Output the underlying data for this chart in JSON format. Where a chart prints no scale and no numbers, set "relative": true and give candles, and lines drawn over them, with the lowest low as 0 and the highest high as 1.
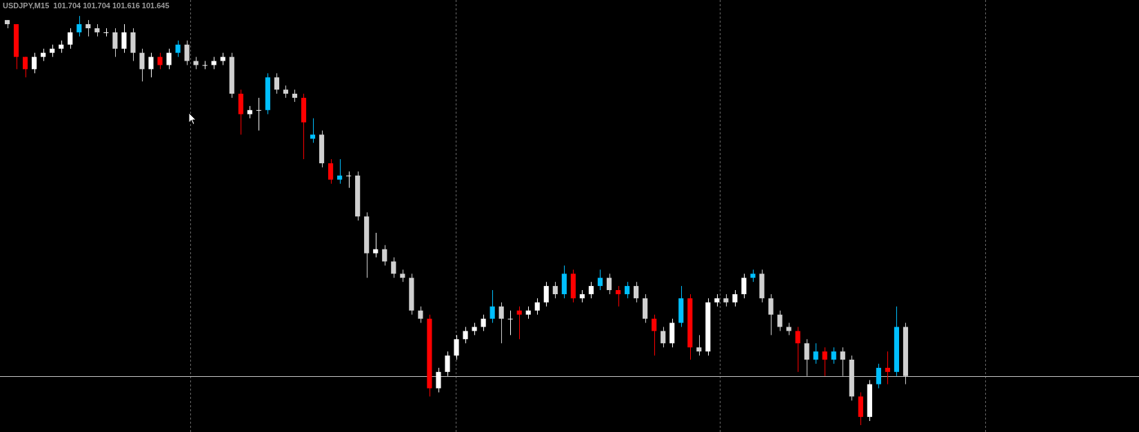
{
  "chart_data": {
    "type": "candlestick",
    "title": "USDJPY,M15  101.704 101.704 101.616 101.645",
    "relative": true,
    "legend": false,
    "tick_labels": false,
    "categories": [
      null,
      null,
      null,
      null,
      null,
      null,
      null,
      null,
      null,
      null,
      null,
      null,
      null,
      null,
      null,
      null,
      null,
      null,
      null,
      null,
      null,
      null,
      null,
      null,
      null,
      null,
      null,
      null,
      null,
      null,
      null,
      null,
      null,
      null,
      null,
      null,
      null,
      null,
      null,
      null,
      null,
      null,
      null,
      null,
      null,
      null,
      null,
      null,
      null,
      null,
      null,
      null,
      null,
      null,
      null,
      null,
      null,
      null,
      null,
      null,
      null,
      null,
      null,
      null,
      null,
      null,
      null,
      null,
      null,
      null,
      null,
      null,
      null,
      null,
      null,
      null,
      null,
      null,
      null,
      null,
      null,
      null,
      null,
      null,
      null,
      null,
      null,
      null,
      null,
      null,
      null,
      null,
      null,
      null,
      null,
      null,
      null,
      null,
      null,
      null,
      null
    ],
    "ohlc": [
      [
        0.99,
        0.99,
        0.97,
        0.98
      ],
      [
        0.98,
        0.98,
        0.87,
        0.9
      ],
      [
        0.9,
        0.9,
        0.85,
        0.87
      ],
      [
        0.87,
        0.91,
        0.86,
        0.9
      ],
      [
        0.9,
        0.92,
        0.89,
        0.91
      ],
      [
        0.91,
        0.93,
        0.9,
        0.92
      ],
      [
        0.92,
        0.94,
        0.91,
        0.93
      ],
      [
        0.93,
        0.97,
        0.92,
        0.96
      ],
      [
        0.96,
        1,
        0.95,
        0.98
      ],
      [
        0.98,
        0.99,
        0.95,
        0.97
      ],
      [
        0.97,
        0.98,
        0.95,
        0.96
      ],
      [
        0.96,
        0.97,
        0.95,
        0.96
      ],
      [
        0.96,
        0.97,
        0.9,
        0.92
      ],
      [
        0.92,
        0.98,
        0.91,
        0.96
      ],
      [
        0.96,
        0.97,
        0.89,
        0.91
      ],
      [
        0.91,
        0.92,
        0.84,
        0.87
      ],
      [
        0.87,
        0.91,
        0.85,
        0.9
      ],
      [
        0.9,
        0.91,
        0.87,
        0.88
      ],
      [
        0.88,
        0.92,
        0.87,
        0.91
      ],
      [
        0.91,
        0.94,
        0.9,
        0.93
      ],
      [
        0.93,
        0.94,
        0.88,
        0.89
      ],
      [
        0.89,
        0.9,
        0.87,
        0.88
      ],
      [
        0.88,
        0.89,
        0.87,
        0.88
      ],
      [
        0.88,
        0.9,
        0.87,
        0.89
      ],
      [
        0.89,
        0.91,
        0.88,
        0.9
      ],
      [
        0.9,
        0.91,
        0.8,
        0.81
      ],
      [
        0.81,
        0.82,
        0.71,
        0.76
      ],
      [
        0.76,
        0.78,
        0.75,
        0.77
      ],
      [
        0.77,
        0.8,
        0.72,
        0.77
      ],
      [
        0.77,
        0.86,
        0.76,
        0.85
      ],
      [
        0.85,
        0.86,
        0.81,
        0.82
      ],
      [
        0.82,
        0.83,
        0.8,
        0.81
      ],
      [
        0.81,
        0.82,
        0.79,
        0.8
      ],
      [
        0.8,
        0.81,
        0.65,
        0.74
      ],
      [
        0.7,
        0.75,
        0.69,
        0.71
      ],
      [
        0.71,
        0.72,
        0.63,
        0.64
      ],
      [
        0.64,
        0.65,
        0.59,
        0.6
      ],
      [
        0.6,
        0.65,
        0.59,
        0.61
      ],
      [
        0.61,
        0.62,
        0.58,
        0.61
      ],
      [
        0.61,
        0.62,
        0.5,
        0.51
      ],
      [
        0.51,
        0.52,
        0.36,
        0.42
      ],
      [
        0.42,
        0.47,
        0.41,
        0.43
      ],
      [
        0.43,
        0.44,
        0.39,
        0.4
      ],
      [
        0.4,
        0.41,
        0.36,
        0.37
      ],
      [
        0.37,
        0.38,
        0.35,
        0.36
      ],
      [
        0.36,
        0.37,
        0.27,
        0.28
      ],
      [
        0.28,
        0.29,
        0.25,
        0.26
      ],
      [
        0.26,
        0.27,
        0.07,
        0.09
      ],
      [
        0.09,
        0.14,
        0.08,
        0.13
      ],
      [
        0.13,
        0.18,
        0.12,
        0.17
      ],
      [
        0.17,
        0.22,
        0.16,
        0.21
      ],
      [
        0.21,
        0.24,
        0.2,
        0.23
      ],
      [
        0.23,
        0.25,
        0.22,
        0.24
      ],
      [
        0.24,
        0.27,
        0.23,
        0.26
      ],
      [
        0.26,
        0.33,
        0.25,
        0.29
      ],
      [
        0.29,
        0.3,
        0.2,
        0.26
      ],
      [
        0.26,
        0.28,
        0.22,
        0.26
      ],
      [
        0.28,
        0.29,
        0.21,
        0.27
      ],
      [
        0.27,
        0.29,
        0.26,
        0.28
      ],
      [
        0.28,
        0.31,
        0.27,
        0.3
      ],
      [
        0.3,
        0.35,
        0.29,
        0.34
      ],
      [
        0.34,
        0.35,
        0.31,
        0.32
      ],
      [
        0.32,
        0.39,
        0.31,
        0.37
      ],
      [
        0.37,
        0.38,
        0.3,
        0.31
      ],
      [
        0.31,
        0.33,
        0.3,
        0.32
      ],
      [
        0.32,
        0.35,
        0.31,
        0.34
      ],
      [
        0.34,
        0.38,
        0.33,
        0.36
      ],
      [
        0.36,
        0.37,
        0.32,
        0.33
      ],
      [
        0.33,
        0.34,
        0.29,
        0.32
      ],
      [
        0.32,
        0.35,
        0.31,
        0.34
      ],
      [
        0.34,
        0.35,
        0.3,
        0.31
      ],
      [
        0.31,
        0.32,
        0.25,
        0.26
      ],
      [
        0.26,
        0.27,
        0.17,
        0.23
      ],
      [
        0.23,
        0.24,
        0.19,
        0.2
      ],
      [
        0.2,
        0.26,
        0.19,
        0.25
      ],
      [
        0.25,
        0.34,
        0.24,
        0.31
      ],
      [
        0.31,
        0.32,
        0.16,
        0.19
      ],
      [
        0.19,
        0.22,
        0.17,
        0.18
      ],
      [
        0.18,
        0.31,
        0.17,
        0.3
      ],
      [
        0.3,
        0.32,
        0.29,
        0.31
      ],
      [
        0.31,
        0.32,
        0.29,
        0.3
      ],
      [
        0.3,
        0.33,
        0.29,
        0.32
      ],
      [
        0.32,
        0.37,
        0.31,
        0.36
      ],
      [
        0.36,
        0.38,
        0.35,
        0.37
      ],
      [
        0.37,
        0.38,
        0.3,
        0.31
      ],
      [
        0.31,
        0.32,
        0.22,
        0.27
      ],
      [
        0.27,
        0.28,
        0.23,
        0.24
      ],
      [
        0.24,
        0.25,
        0.22,
        0.23
      ],
      [
        0.23,
        0.24,
        0.13,
        0.2
      ],
      [
        0.2,
        0.21,
        0.12,
        0.16
      ],
      [
        0.16,
        0.2,
        0.15,
        0.18
      ],
      [
        0.18,
        0.19,
        0.12,
        0.16
      ],
      [
        0.16,
        0.19,
        0.15,
        0.18
      ],
      [
        0.18,
        0.19,
        0.12,
        0.16
      ],
      [
        0.16,
        0.17,
        0.06,
        0.07
      ],
      [
        0.07,
        0.08,
        0,
        0.02
      ],
      [
        0.02,
        0.11,
        0.01,
        0.1
      ],
      [
        0.1,
        0.15,
        0.09,
        0.14
      ],
      [
        0.14,
        0.18,
        0.1,
        0.13
      ],
      [
        0.13,
        0.29,
        0.12,
        0.24
      ],
      [
        0.24,
        0.25,
        0.1,
        0.12
      ]
    ],
    "colors": [
      "#d0d0d0",
      "#ff0000",
      "#ff0000",
      "#ffffff",
      "#ffffff",
      "#ffffff",
      "#ffffff",
      "#ffffff",
      "#00bfff",
      "#d0d0d0",
      "#d0d0d0",
      "#ffffff",
      "#d0d0d0",
      "#ffffff",
      "#d0d0d0",
      "#d0d0d0",
      "#ffffff",
      "#ff0000",
      "#ffffff",
      "#00bfff",
      "#d0d0d0",
      "#d0d0d0",
      "#ffffff",
      "#ffffff",
      "#ffffff",
      "#d0d0d0",
      "#ff0000",
      "#ffffff",
      "#ffffff",
      "#00bfff",
      "#d0d0d0",
      "#d0d0d0",
      "#d0d0d0",
      "#ff0000",
      "#00bfff",
      "#d0d0d0",
      "#ff0000",
      "#00bfff",
      "#ffffff",
      "#d0d0d0",
      "#d0d0d0",
      "#ffffff",
      "#d0d0d0",
      "#d0d0d0",
      "#d0d0d0",
      "#d0d0d0",
      "#d0d0d0",
      "#ff0000",
      "#ffffff",
      "#ffffff",
      "#ffffff",
      "#ffffff",
      "#ffffff",
      "#ffffff",
      "#00bfff",
      "#d0d0d0",
      "#ffffff",
      "#ff0000",
      "#ffffff",
      "#ffffff",
      "#ffffff",
      "#d0d0d0",
      "#00bfff",
      "#ff0000",
      "#ffffff",
      "#ffffff",
      "#00bfff",
      "#d0d0d0",
      "#ff0000",
      "#00bfff",
      "#d0d0d0",
      "#d0d0d0",
      "#ff0000",
      "#d0d0d0",
      "#ffffff",
      "#00bfff",
      "#ff0000",
      "#d0d0d0",
      "#ffffff",
      "#ffffff",
      "#d0d0d0",
      "#ffffff",
      "#ffffff",
      "#00bfff",
      "#d0d0d0",
      "#d0d0d0",
      "#d0d0d0",
      "#d0d0d0",
      "#ff0000",
      "#d0d0d0",
      "#00bfff",
      "#ff0000",
      "#00bfff",
      "#d0d0d0",
      "#d0d0d0",
      "#ff0000",
      "#ffffff",
      "#00bfff",
      "#ff0000",
      "#00bfff",
      "#d0d0d0"
    ],
    "ref_lines": [
      {
        "axis": "y",
        "value": 0.12,
        "color": "#c8c8c8"
      }
    ]
  }
}
